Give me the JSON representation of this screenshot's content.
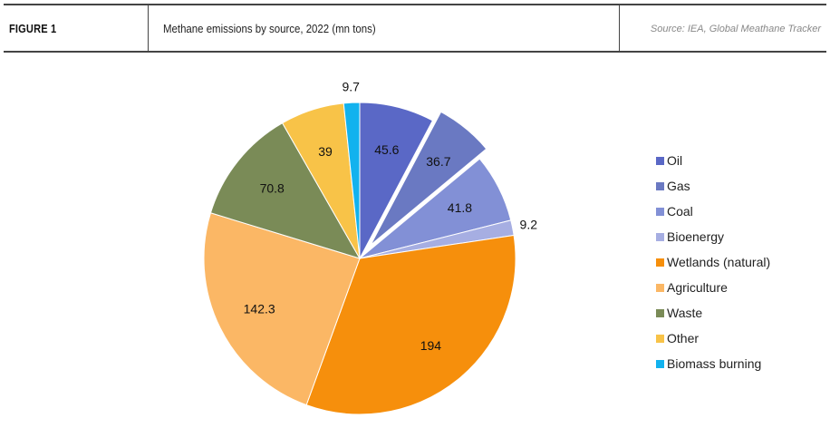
{
  "header": {
    "figure_label": "FIGURE 1",
    "title": "Methane emissions by source, 2022 (mn tons)",
    "source": "Source: IEA, Global Meathane Tracker"
  },
  "chart_data": {
    "type": "pie",
    "title": "Methane emissions by source, 2022 (mn tons)",
    "legend_position": "right",
    "start_angle": "12 o'clock, clockwise",
    "exploded": [
      "Gas"
    ],
    "slices": [
      {
        "name": "Oil",
        "value": 45.6,
        "label": "45.6",
        "color": "#5a68c6"
      },
      {
        "name": "Gas",
        "value": 36.7,
        "label": "36.7",
        "color": "#6a79c2"
      },
      {
        "name": "Coal",
        "value": 41.8,
        "label": "41.8",
        "color": "#8290d6"
      },
      {
        "name": "Bioenergy",
        "value": 9.2,
        "label": "9.2",
        "color": "#a6aee2"
      },
      {
        "name": "Wetlands (natural)",
        "value": 194,
        "label": "194",
        "color": "#f68f0c"
      },
      {
        "name": "Agriculture",
        "value": 142.3,
        "label": "142.3",
        "color": "#fbb765"
      },
      {
        "name": "Waste",
        "value": 70.8,
        "label": "70.8",
        "color": "#7a8b57"
      },
      {
        "name": "Other",
        "value": 39,
        "label": "39",
        "color": "#f8c348"
      },
      {
        "name": "Biomass burning",
        "value": 9.7,
        "label": "9.7",
        "color": "#12b2ee"
      }
    ]
  }
}
